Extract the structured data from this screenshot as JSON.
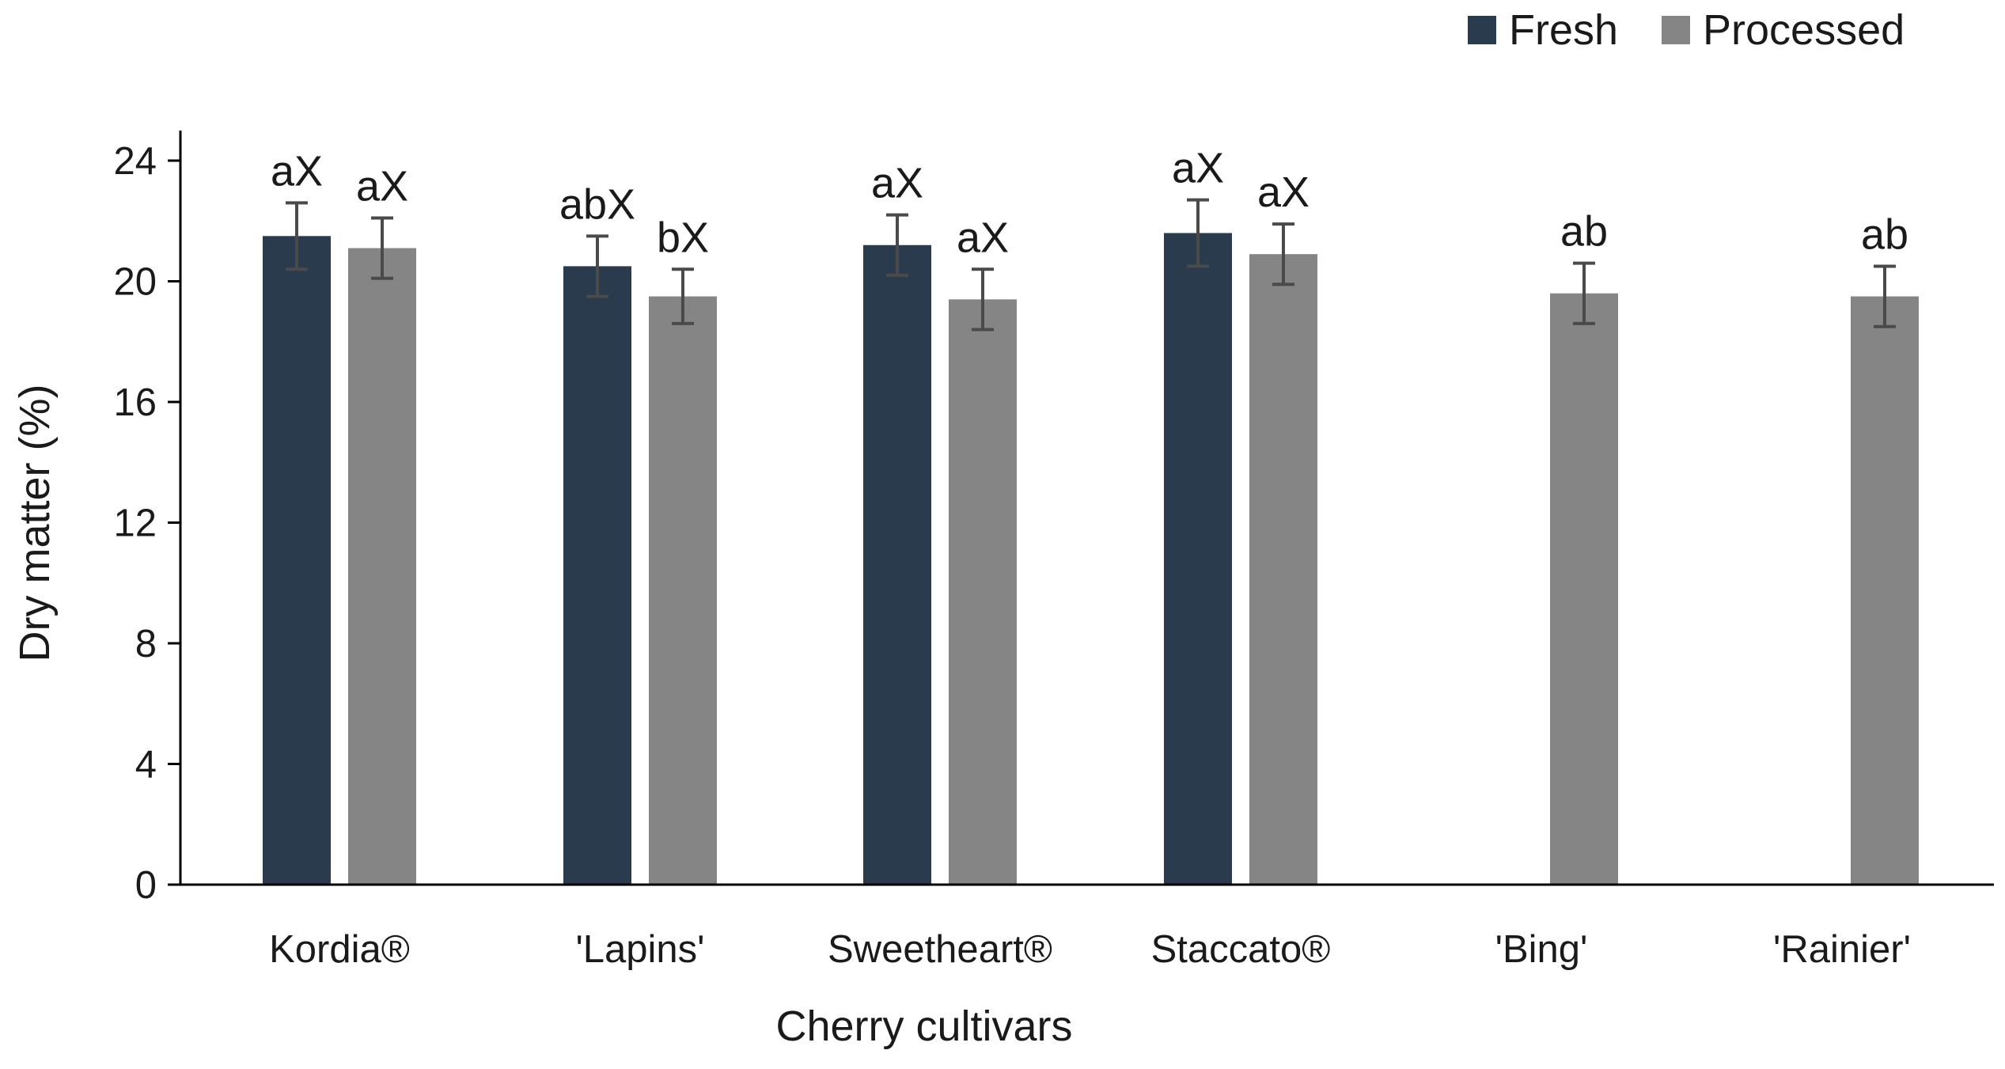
{
  "chart_data": {
    "type": "bar",
    "xlabel": "Cherry cultivars",
    "ylabel": "Dry matter (%)",
    "ylim": [
      0,
      24
    ],
    "yticks": [
      0,
      4,
      8,
      12,
      16,
      20,
      24
    ],
    "grid": false,
    "legend_position": "top-right",
    "categories": [
      "Kordia®",
      "'Lapins'",
      "Sweetheart®",
      "Staccato®",
      "'Bing'",
      "'Rainier'"
    ],
    "series": [
      {
        "name": "Fresh",
        "color": "#2b3b4e",
        "values": [
          21.5,
          20.5,
          21.2,
          21.6,
          null,
          null
        ],
        "errors": [
          1.1,
          1.0,
          1.0,
          1.1,
          null,
          null
        ],
        "labels": [
          "aX",
          "abX",
          "aX",
          "aX",
          null,
          null
        ]
      },
      {
        "name": "Processed",
        "color": "#858585",
        "values": [
          21.1,
          19.5,
          19.4,
          20.9,
          19.6,
          19.5
        ],
        "errors": [
          1.0,
          0.9,
          1.0,
          1.0,
          1.0,
          1.0
        ],
        "labels": [
          "aX",
          "bX",
          "aX",
          "aX",
          "ab",
          "ab"
        ]
      }
    ]
  }
}
